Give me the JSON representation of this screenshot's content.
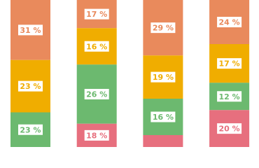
{
  "chart_data": {
    "type": "bar",
    "stacked": true,
    "series": [
      {
        "color": "#e98a5c",
        "values": [
          31,
          17,
          29,
          24
        ],
        "value_labels": [
          "31 %",
          "17 %",
          "29 %",
          "24 %"
        ]
      },
      {
        "color": "#f0ad00",
        "values": [
          23,
          16,
          19,
          17
        ],
        "value_labels": [
          "23 %",
          "16 %",
          "19 %",
          "17 %"
        ]
      },
      {
        "color": "#6cb96f",
        "values": [
          23,
          26,
          16,
          12
        ],
        "value_labels": [
          "23 %",
          "26 %",
          "16 %",
          "12 %"
        ]
      },
      {
        "color": "#e76f7e",
        "values": [
          null,
          18,
          null,
          20
        ],
        "value_labels": [
          null,
          "18 %",
          null,
          "20 %"
        ]
      }
    ]
  }
}
